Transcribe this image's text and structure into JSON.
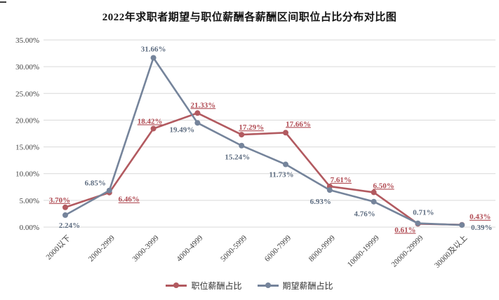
{
  "page": {
    "title": "2022年求职者期望与职位薪酬各薪酬区间职位占比分布对比图"
  },
  "chart_data": {
    "type": "line",
    "title": "2022年求职者期望与职位薪酬各薪酬区间职位占比分布对比图",
    "categories": [
      "2000以下",
      "2000-2999",
      "3000-3999",
      "4000-4999",
      "5000-5999",
      "6000-7999",
      "8000-9999",
      "10000-19999",
      "20000-29999",
      "30000及以上"
    ],
    "series": [
      {
        "name": "职位薪酬占比",
        "values": [
          3.7,
          6.46,
          18.42,
          21.33,
          17.29,
          17.66,
          7.61,
          6.5,
          0.61,
          0.43
        ],
        "labels": [
          "3.70%",
          "6.46%",
          "18.42%",
          "21.33%",
          "17.29%",
          "17.66%",
          "7.61%",
          "6.50%",
          "0.61%",
          "0.43%"
        ],
        "color": "#b25a60",
        "label_color": "#b04a52",
        "underline_labels": true,
        "label_offsets": [
          [
            -8,
            -7
          ],
          [
            28,
            13
          ],
          [
            -5,
            -7
          ],
          [
            8,
            -8
          ],
          [
            14,
            -7
          ],
          [
            18,
            -9
          ],
          [
            16,
            -6
          ],
          [
            14,
            -6
          ],
          [
            -18,
            12
          ],
          [
            26,
            -8
          ]
        ]
      },
      {
        "name": "期望薪酬占比",
        "values": [
          2.24,
          6.85,
          31.66,
          19.49,
          15.24,
          11.73,
          6.93,
          4.76,
          0.71,
          0.39
        ],
        "labels": [
          "2.24%",
          "6.85%",
          "31.66%",
          "19.49%",
          "15.24%",
          "11.73%",
          "6.93%",
          "4.76%",
          "0.71%",
          "0.39%"
        ],
        "color": "#75849b",
        "label_color": "#5e6d81",
        "underline_labels": false,
        "label_offsets": [
          [
            6,
            18
          ],
          [
            -20,
            -7
          ],
          [
            0,
            -9
          ],
          [
            -22,
            13
          ],
          [
            -6,
            20
          ],
          [
            -6,
            18
          ],
          [
            -13,
            20
          ],
          [
            -13,
            21
          ],
          [
            8,
            -12
          ],
          [
            28,
            7
          ]
        ]
      }
    ],
    "xlabel": "",
    "ylabel": "",
    "y_axis": {
      "min": 0,
      "max": 35,
      "step": 5,
      "tick_labels": [
        "0.00%",
        "5.00%",
        "10.00%",
        "15.00%",
        "20.00%",
        "25.00%",
        "30.00%",
        "35.00%"
      ]
    },
    "ylim": [
      0,
      35
    ],
    "grid": true,
    "legend_position": "bottom"
  },
  "colors": {
    "grid": "#d9d9d9",
    "axis_text": "#404040",
    "title_text": "#141414"
  }
}
